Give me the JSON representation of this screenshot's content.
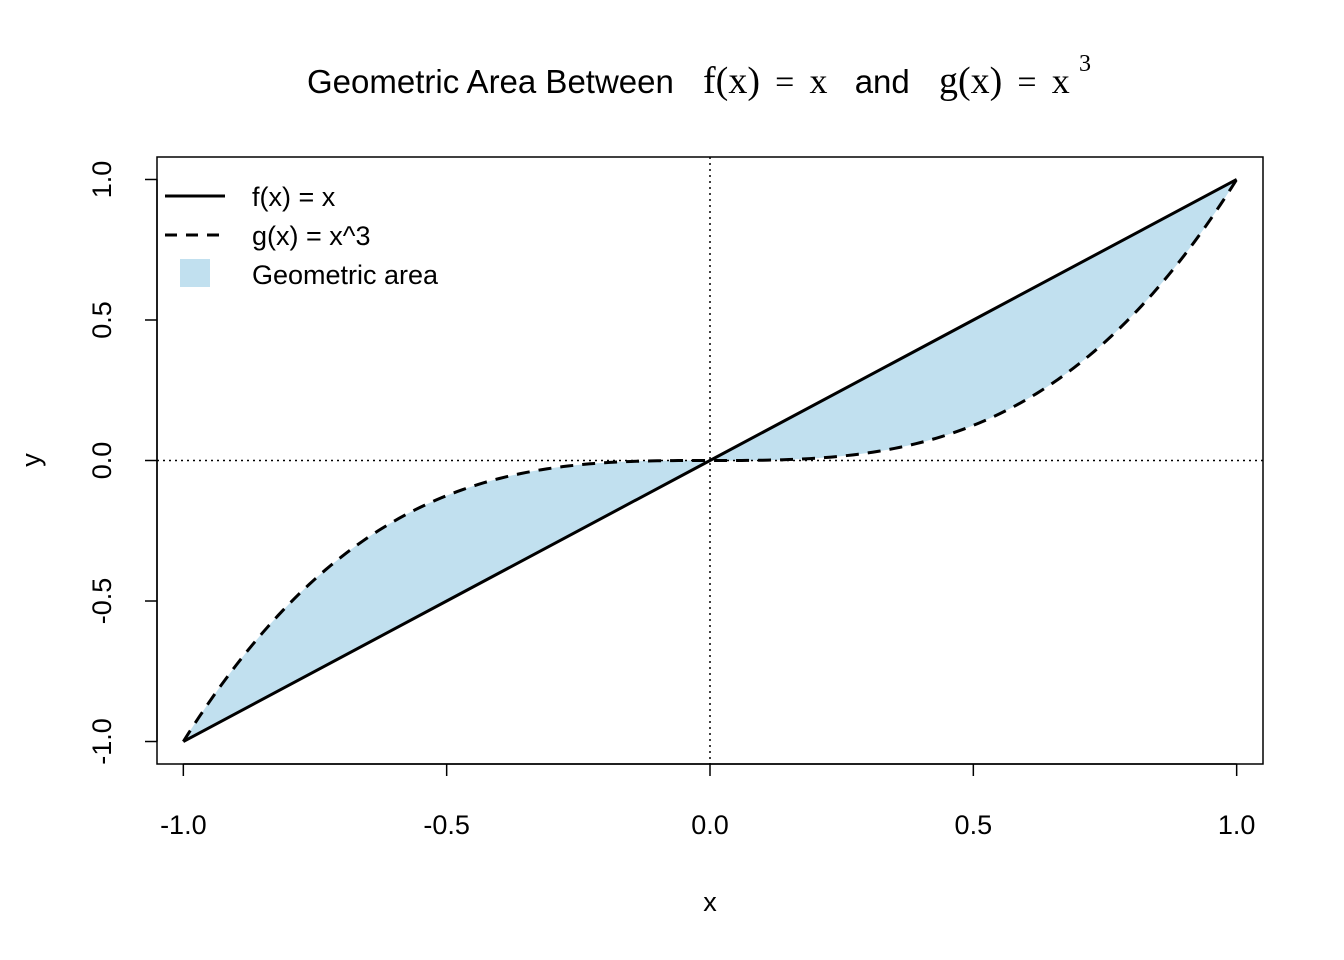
{
  "chart_data": {
    "type": "line",
    "title": {
      "prefix": "Geometric Area Between",
      "f_expr": "f(x)",
      "f_eq": "=",
      "f_rhs": "x",
      "and": "and",
      "g_expr": "g(x)",
      "g_eq": "=",
      "g_rhs": "x",
      "g_exp": "3"
    },
    "xlabel": "x",
    "ylabel": "y",
    "xlim": [
      -1.05,
      1.05
    ],
    "ylim": [
      -1.08,
      1.08
    ],
    "xticks": [
      {
        "value": -1.0,
        "label": "-1.0"
      },
      {
        "value": -0.5,
        "label": "-0.5"
      },
      {
        "value": 0.0,
        "label": "0.0"
      },
      {
        "value": 0.5,
        "label": "0.5"
      },
      {
        "value": 1.0,
        "label": "1.0"
      }
    ],
    "yticks": [
      {
        "value": -1.0,
        "label": "-1.0"
      },
      {
        "value": -0.5,
        "label": "-0.5"
      },
      {
        "value": 0.0,
        "label": "0.0"
      },
      {
        "value": 0.5,
        "label": "0.5"
      },
      {
        "value": 1.0,
        "label": "1.0"
      }
    ],
    "reference_lines": [
      {
        "axis": "x",
        "value": 0,
        "style": "dotted"
      },
      {
        "axis": "y",
        "value": 0,
        "style": "dotted"
      }
    ],
    "series": [
      {
        "name": "f(x) = x",
        "style": "solid",
        "color": "#000000",
        "x": [
          -1.0,
          -0.5,
          0.0,
          0.5,
          1.0
        ],
        "y": [
          -1.0,
          -0.5,
          0.0,
          0.5,
          1.0
        ]
      },
      {
        "name": "g(x) = x^3",
        "style": "dashed",
        "color": "#000000",
        "x": [
          -1.0,
          -0.9,
          -0.8,
          -0.7,
          -0.6,
          -0.5,
          -0.4,
          -0.3,
          -0.2,
          -0.1,
          0.0,
          0.1,
          0.2,
          0.3,
          0.4,
          0.5,
          0.6,
          0.7,
          0.8,
          0.9,
          1.0
        ],
        "y": [
          -1.0,
          -0.729,
          -0.512,
          -0.343,
          -0.216,
          -0.125,
          -0.064,
          -0.027,
          -0.008,
          -0.001,
          0.0,
          0.001,
          0.008,
          0.027,
          0.064,
          0.125,
          0.216,
          0.343,
          0.512,
          0.729,
          1.0
        ]
      }
    ],
    "shaded_area": {
      "name": "Geometric area",
      "color": "#c1e0ef",
      "between": [
        "f(x) = x",
        "g(x) = x^3"
      ],
      "x_range": [
        -1.0,
        1.0
      ]
    },
    "legend": {
      "position": "top-left",
      "entries": [
        {
          "label": "f(x) = x",
          "kind": "line",
          "style": "solid"
        },
        {
          "label": "g(x) = x^3",
          "kind": "line",
          "style": "dashed"
        },
        {
          "label": "Geometric area",
          "kind": "fill",
          "color": "#c1e0ef"
        }
      ]
    },
    "grid": false
  }
}
